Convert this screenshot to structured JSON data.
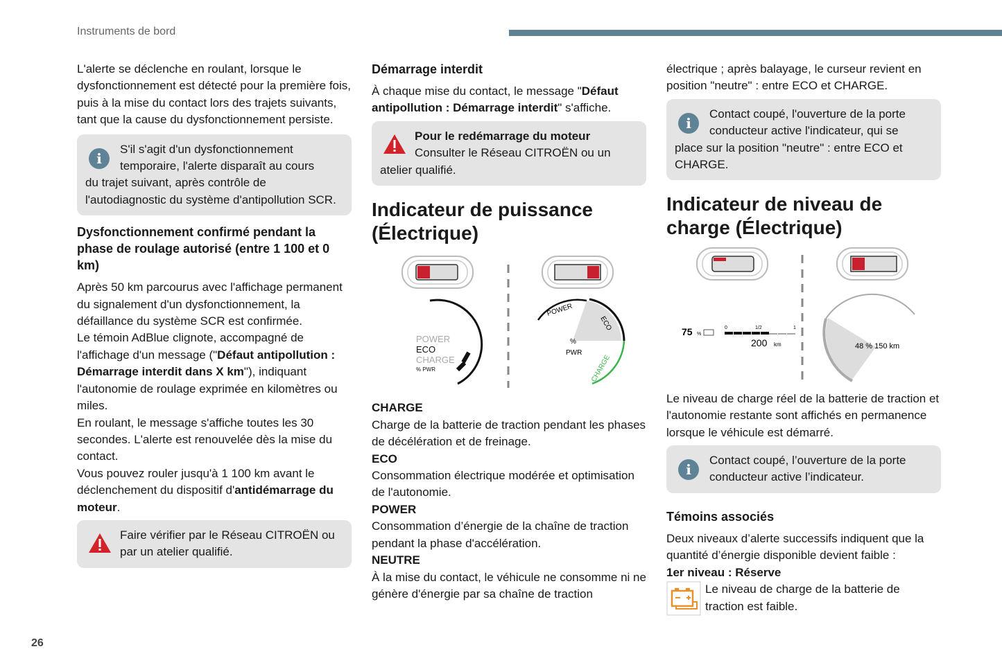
{
  "header": {
    "section": "Instruments de bord",
    "page_number": "26",
    "accent_color": "#5f8396"
  },
  "col1": {
    "p1": "L'alerte se déclenche en roulant, lorsque le dysfonctionnement est détecté pour la première fois, puis à la mise du contact lors des trajets suivants, tant que la cause du dysfonctionnement persiste.",
    "info1": {
      "lead": "S'il s'agit d'un dysfonctionnement temporaire, l'alerte disparaît au cours",
      "rest": "du trajet suivant, après contrôle de l'autodiagnostic du système d'antipollution SCR."
    },
    "h_confirmed": "Dysfonctionnement confirmé pendant la phase de roulage autorisé (entre 1 100 et 0 km)",
    "p2": "Après 50 km parcourus avec l'affichage permanent du signalement d'un dysfonctionnement, la défaillance du système SCR est confirmée.",
    "p3a": "Le témoin AdBlue clignote, accompagné de l'affichage d'un message (\"",
    "p3b": "Défaut antipollution : Démarrage interdit dans X km",
    "p3c": "\"), indiquant l'autonomie de roulage exprimée en kilomètres ou miles.",
    "p4": "En roulant, le message s'affiche toutes les 30 secondes. L'alerte est renouvelée dès la mise du contact.",
    "p5a": "Vous pouvez rouler jusqu'à 1 100 km avant le déclenchement du dispositif d'",
    "p5b": "antidémarrage du moteur",
    "p5c": ".",
    "warn": "Faire vérifier par le Réseau CITROËN ou par un atelier qualifié."
  },
  "col2": {
    "h_start": "Démarrage interdit",
    "p1a": "À chaque mise du contact, le message \"",
    "p1b": "Défaut antipollution : Démarrage interdit",
    "p1c": "\" s'affiche.",
    "warn": {
      "title": "Pour le redémarrage du moteur",
      "lead": "Consulter le Réseau CITROËN ou un",
      "rest": "atelier qualifié."
    },
    "h_power": "Indicateur de puissance (Électrique)",
    "diagram": {
      "left_labels": [
        "POWER",
        "ECO",
        "CHARGE",
        "% PWR"
      ],
      "right_labels": {
        "power": "POWER",
        "eco": "ECO",
        "charge": "CHARGE",
        "pct": "%",
        "pwr": "PWR"
      },
      "charge_color": "#3cb44b",
      "indicator_color": "#c8202f"
    },
    "defs": [
      {
        "term": "CHARGE",
        "desc": "Charge de la batterie de traction pendant les phases de décélération et de freinage."
      },
      {
        "term": "ECO",
        "desc": "Consommation électrique modérée et optimisation de l'autonomie."
      },
      {
        "term": "POWER",
        "desc": "Consommation d’énergie de la chaîne de traction pendant la phase d'accélération."
      },
      {
        "term": "NEUTRE",
        "desc": "À la mise du contact, le véhicule ne consomme ni ne génère d'énergie par sa chaîne de traction"
      }
    ]
  },
  "col3": {
    "p1": "électrique ; après balayage, le curseur revient en position \"neutre\" : entre ECO et CHARGE.",
    "info1": {
      "lead": "Contact coupé, l'ouverture de la porte conducteur active l'indicateur, qui se",
      "rest": "place sur la position \"neutre\" : entre ECO et CHARGE."
    },
    "h_charge": "Indicateur de niveau de charge (Électrique)",
    "diagram": {
      "left": {
        "pct": "75",
        "pct_unit": "%",
        "scale": [
          "0",
          "1/2",
          "1"
        ],
        "range": "200",
        "range_unit": "km"
      },
      "right": {
        "text": "48 % 150 km"
      }
    },
    "p2": "Le niveau de charge réel de la batterie de traction et l'autonomie restante sont affichés en permanence lorsque le véhicule est démarré.",
    "info2": "Contact coupé, l’ouverture de la porte conducteur active l’indicateur.",
    "h_temoins": "Témoins associés",
    "p3": "Deux niveaux d’alerte successifs indiquent que la quantité d’énergie disponible devient faible :",
    "h_level1": "1er niveau : Réserve",
    "p4": "Le niveau de charge de la batterie de traction est faible.",
    "battery_icon_color": "#e8902a"
  }
}
